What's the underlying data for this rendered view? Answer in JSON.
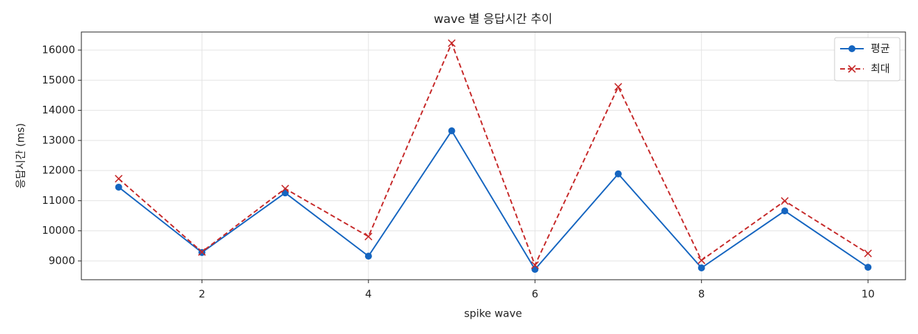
{
  "chart_data": {
    "type": "line",
    "title": "wave 별 응답시간 추이",
    "x_label": "spike wave",
    "y_label": "응답시간 (ms)",
    "x": [
      1,
      2,
      3,
      4,
      5,
      6,
      7,
      8,
      9,
      10
    ],
    "series": [
      {
        "name": "평균",
        "color": "#1565c0",
        "linestyle": "solid",
        "marker": "circle",
        "values": [
          11450,
          9280,
          11260,
          9160,
          13320,
          8720,
          11890,
          8770,
          10660,
          8790
        ]
      },
      {
        "name": "최대",
        "color": "#c62828",
        "linestyle": "dashed",
        "marker": "x",
        "values": [
          11730,
          9300,
          11400,
          9810,
          16230,
          8860,
          14780,
          9020,
          10990,
          9250
        ]
      }
    ],
    "xlim": [
      0.552,
      10.45
    ],
    "xticks": [
      2,
      4,
      6,
      8,
      10
    ],
    "ylim": [
      8376,
      16601
    ],
    "yticks": [
      9000,
      10000,
      11000,
      12000,
      13000,
      14000,
      15000,
      16000
    ],
    "grid": true,
    "legend": "upper right"
  }
}
